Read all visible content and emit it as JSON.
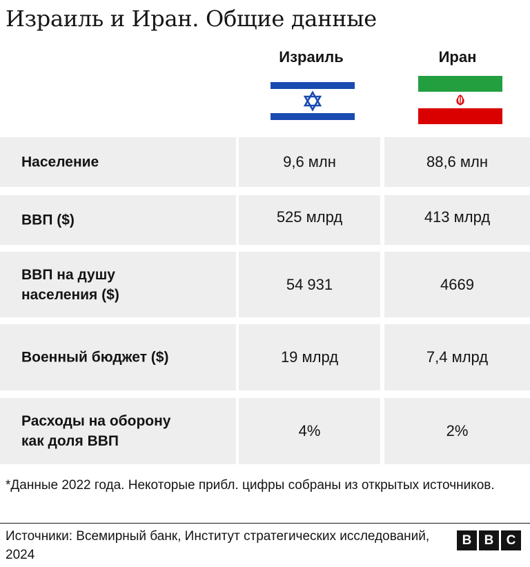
{
  "title": "Израиль и Иран. Общие данные",
  "columns": [
    {
      "name": "Израиль",
      "flag_icon": "israel-flag"
    },
    {
      "name": "Иран",
      "flag_icon": "iran-flag"
    }
  ],
  "rows": [
    {
      "label": "Население",
      "israel": "9,6 млн",
      "iran": "88,6 млн"
    },
    {
      "label": "ВВП ($)",
      "israel": "525 млрд",
      "iran": "413 млрд"
    },
    {
      "label": "ВВП на душу населения ($)",
      "israel": "54 931",
      "iran": "4669"
    },
    {
      "label": "Военный бюджет ($)",
      "israel": "19 млрд",
      "iran": "7,4 млрд"
    },
    {
      "label": "Расходы на оборону как доля ВВП",
      "israel": "4%",
      "iran": "2%"
    }
  ],
  "footnote": "*Данные 2022 года. Некоторые прибл. цифры собраны из открытых источников.",
  "sources": "Источники: Всемирный банк, Институт стратегических исследований, 2024",
  "logo": {
    "letters": [
      "B",
      "B",
      "C"
    ]
  },
  "colors": {
    "israel_blue": "#1a4bb0",
    "iran_green": "#239f40",
    "iran_red": "#da0000",
    "row_bg": "#eeeeee",
    "text": "#141414"
  }
}
